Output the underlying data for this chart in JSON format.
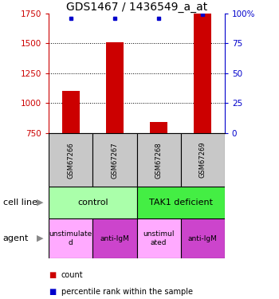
{
  "title": "GDS1467 / 1436549_a_at",
  "samples": [
    "GSM67266",
    "GSM67267",
    "GSM67268",
    "GSM67269"
  ],
  "counts": [
    1100,
    1510,
    840,
    1750
  ],
  "percentiles": [
    96,
    96,
    96,
    99
  ],
  "ylim_left": [
    750,
    1750
  ],
  "ylim_right": [
    0,
    100
  ],
  "yticks_left": [
    750,
    1000,
    1250,
    1500,
    1750
  ],
  "yticks_right": [
    0,
    25,
    50,
    75,
    100
  ],
  "ytick_labels_right": [
    "0",
    "25",
    "50",
    "75",
    "100%"
  ],
  "bar_color": "#cc0000",
  "dot_color": "#0000cc",
  "bar_width": 0.4,
  "cell_line_labels": [
    "control",
    "TAK1 deficient"
  ],
  "cell_line_colors": [
    "#aaffaa",
    "#44ee44"
  ],
  "cell_line_spans": [
    [
      0,
      2
    ],
    [
      2,
      4
    ]
  ],
  "agent_labels": [
    "unstimulate\nd",
    "anti-IgM",
    "unstimul\nated",
    "anti-IgM"
  ],
  "agent_colors_alt": [
    "#ffaaff",
    "#cc44cc",
    "#ffaaff",
    "#cc44cc"
  ],
  "left_label_cell_line": "cell line",
  "left_label_agent": "agent",
  "legend_count": "count",
  "legend_percentile": "percentile rank within the sample",
  "title_fontsize": 10,
  "axis_color_left": "#cc0000",
  "axis_color_right": "#0000cc",
  "background_color": "#ffffff",
  "gridlines_at": [
    1000,
    1250,
    1500
  ],
  "sample_box_color": "#c8c8c8"
}
